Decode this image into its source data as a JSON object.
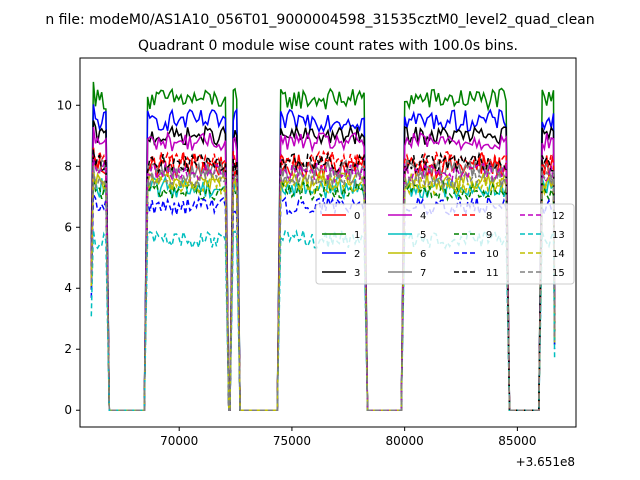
{
  "chart_data": {
    "type": "line",
    "suptitle": "n file: modeM0/AS1A10_056T01_9000004598_31535cztM0_level2_quad_clean",
    "title": "Quadrant 0 module wise count rates with 100.0s bins.",
    "xlabel": "",
    "ylabel": "",
    "x_offset_label": "+3.651e8",
    "xlim": [
      65600,
      87600
    ],
    "ylim": [
      -0.55,
      11.55
    ],
    "x_ticks": [
      70000,
      75000,
      80000,
      85000
    ],
    "x_tick_labels": [
      "70000",
      "75000",
      "80000",
      "85000"
    ],
    "y_ticks": [
      0,
      2,
      4,
      6,
      8,
      10
    ],
    "y_tick_labels": [
      "0",
      "2",
      "4",
      "6",
      "8",
      "10"
    ],
    "grid": false,
    "legend_position": "center-right",
    "legend_columns": 4,
    "segments": [
      {
        "start": 66100,
        "end": 66750
      },
      {
        "start": 68600,
        "end": 72050
      },
      {
        "start": 72400,
        "end": 72550
      },
      {
        "start": 74500,
        "end": 78200
      },
      {
        "start": 80000,
        "end": 84500
      },
      {
        "start": 86100,
        "end": 86600
      }
    ],
    "series": [
      {
        "name": "0",
        "level": 8.0,
        "noise": 0.4,
        "style": "solid",
        "color": "#ff0000"
      },
      {
        "name": "1",
        "level": 10.2,
        "noise": 0.35,
        "style": "solid",
        "color": "#008000"
      },
      {
        "name": "2",
        "level": 9.5,
        "noise": 0.35,
        "style": "solid",
        "color": "#0000ff"
      },
      {
        "name": "3",
        "level": 9.0,
        "noise": 0.3,
        "style": "solid",
        "color": "#000000"
      },
      {
        "name": "4",
        "level": 8.8,
        "noise": 0.3,
        "style": "solid",
        "color": "#bf00bf"
      },
      {
        "name": "5",
        "level": 7.3,
        "noise": 0.35,
        "style": "solid",
        "color": "#00bfbf"
      },
      {
        "name": "6",
        "level": 7.5,
        "noise": 0.3,
        "style": "solid",
        "color": "#bfbf00"
      },
      {
        "name": "7",
        "level": 7.9,
        "noise": 0.3,
        "style": "solid",
        "color": "#808080"
      },
      {
        "name": "8",
        "level": 8.2,
        "noise": 0.3,
        "style": "dashed",
        "color": "#ff0000"
      },
      {
        "name": "9",
        "level": 7.2,
        "noise": 0.3,
        "style": "dashed",
        "color": "#008000"
      },
      {
        "name": "10",
        "level": 6.7,
        "noise": 0.3,
        "style": "dashed",
        "color": "#0000ff"
      },
      {
        "name": "11",
        "level": 8.1,
        "noise": 0.3,
        "style": "dashed",
        "color": "#000000"
      },
      {
        "name": "12",
        "level": 7.8,
        "noise": 0.3,
        "style": "dashed",
        "color": "#bf00bf"
      },
      {
        "name": "13",
        "level": 5.6,
        "noise": 0.3,
        "style": "dashed",
        "color": "#00bfbf"
      },
      {
        "name": "14",
        "level": 7.4,
        "noise": 0.3,
        "style": "dashed",
        "color": "#bfbf00"
      },
      {
        "name": "15",
        "level": 7.6,
        "noise": 0.3,
        "style": "dashed",
        "color": "#808080"
      }
    ]
  }
}
